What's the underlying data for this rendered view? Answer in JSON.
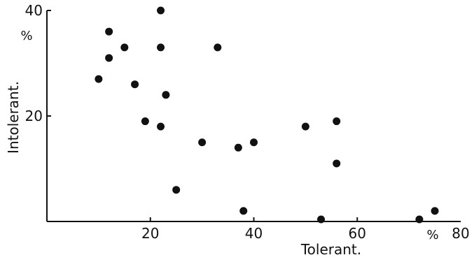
{
  "chart_data": {
    "type": "scatter",
    "xlabel": "Tolerant.",
    "ylabel": "Intolerant.",
    "x_unit": "%",
    "y_unit": "%",
    "xlim": [
      0,
      80
    ],
    "ylim": [
      0,
      40
    ],
    "x_ticks": [
      "20",
      "40",
      "60",
      "80"
    ],
    "y_ticks": [
      "20",
      "40"
    ],
    "grid": false,
    "marker_color": "#111111",
    "series": [
      {
        "points": [
          {
            "x": 10,
            "y": 27
          },
          {
            "x": 12,
            "y": 36
          },
          {
            "x": 12,
            "y": 31
          },
          {
            "x": 15,
            "y": 33
          },
          {
            "x": 17,
            "y": 26
          },
          {
            "x": 19,
            "y": 19
          },
          {
            "x": 22,
            "y": 40
          },
          {
            "x": 22,
            "y": 33
          },
          {
            "x": 22,
            "y": 18
          },
          {
            "x": 23,
            "y": 24
          },
          {
            "x": 25,
            "y": 6
          },
          {
            "x": 30,
            "y": 15
          },
          {
            "x": 33,
            "y": 33
          },
          {
            "x": 37,
            "y": 14
          },
          {
            "x": 38,
            "y": 2
          },
          {
            "x": 40,
            "y": 15
          },
          {
            "x": 50,
            "y": 18
          },
          {
            "x": 53,
            "y": 0
          },
          {
            "x": 56,
            "y": 19
          },
          {
            "x": 56,
            "y": 11
          },
          {
            "x": 72,
            "y": 0
          },
          {
            "x": 75,
            "y": 2
          }
        ]
      }
    ]
  }
}
